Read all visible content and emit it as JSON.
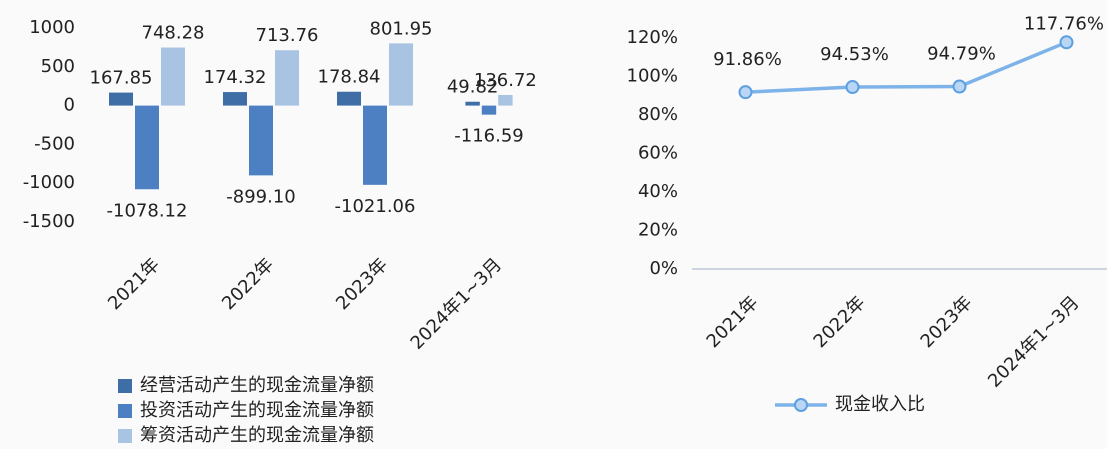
{
  "chart_data": [
    {
      "type": "bar",
      "categories": [
        "2021年",
        "2022年",
        "2023年",
        "2024年1~3月"
      ],
      "series": [
        {
          "name": "经营活动产生的现金流量净额",
          "color": "#3f6ea6",
          "values": [
            167.85,
            174.32,
            178.84,
            49.82
          ],
          "value_labels": [
            "167.85",
            "174.32",
            "178.84",
            "49.82"
          ]
        },
        {
          "name": "投资活动产生的现金流量净额",
          "color": "#4c80c2",
          "values": [
            -1078.12,
            -899.1,
            -1021.06,
            -116.59
          ],
          "value_labels": [
            "-1078.12",
            "-899.10",
            "-1021.06",
            "-116.59"
          ]
        },
        {
          "name": "筹资活动产生的现金流量净额",
          "color": "#a9c3e2",
          "values": [
            748.28,
            713.76,
            801.95,
            136.72
          ],
          "value_labels": [
            "748.28",
            "713.76",
            "801.95",
            "136.72"
          ]
        }
      ],
      "ylim": [
        -1500,
        1000
      ],
      "yticks": [
        1000,
        500,
        0,
        -500,
        -1000,
        -1500
      ]
    },
    {
      "type": "line",
      "categories": [
        "2021年",
        "2022年",
        "2023年",
        "2024年1~3月"
      ],
      "series": [
        {
          "name": "现金收入比",
          "color": "#7db3e8",
          "values": [
            91.86,
            94.53,
            94.79,
            117.76
          ],
          "value_labels": [
            "91.86%",
            "94.53%",
            "94.79%",
            "117.76%"
          ]
        }
      ],
      "ylim": [
        0,
        120
      ],
      "yticks": [
        {
          "value": 120,
          "label": "120%"
        },
        {
          "value": 100,
          "label": "100%"
        },
        {
          "value": 80,
          "label": "80%"
        },
        {
          "value": 60,
          "label": "60%"
        },
        {
          "value": 40,
          "label": "40%"
        },
        {
          "value": 20,
          "label": "20%"
        },
        {
          "value": 0,
          "label": "0%"
        }
      ]
    }
  ]
}
